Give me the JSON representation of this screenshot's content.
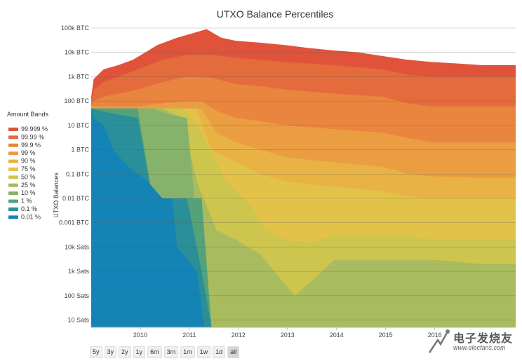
{
  "chart_data": {
    "type": "area",
    "title": "UTXO Balance Percentiles",
    "ylabel": "UTXO Balances",
    "y_scale": "log",
    "y_unit": "BTC",
    "ylim_btc": [
      5e-08,
      100000.0
    ],
    "y_ticks": [
      {
        "label": "100k BTC",
        "value": 100000
      },
      {
        "label": "10k BTC",
        "value": 10000
      },
      {
        "label": "1k BTC",
        "value": 1000
      },
      {
        "label": "100 BTC",
        "value": 100
      },
      {
        "label": "10 BTC",
        "value": 10
      },
      {
        "label": "1 BTC",
        "value": 1
      },
      {
        "label": "0.1 BTC",
        "value": 0.1
      },
      {
        "label": "0.01 BTC",
        "value": 0.01
      },
      {
        "label": "0.001 BTC",
        "value": 0.001
      },
      {
        "label": "10k Sats",
        "value": 0.0001
      },
      {
        "label": "1k Sats",
        "value": 1e-05
      },
      {
        "label": "100 Sats",
        "value": 1e-06
      },
      {
        "label": "10 Sats",
        "value": 1e-07
      }
    ],
    "xlim": [
      2009.05,
      2017.7
    ],
    "x_ticks": [
      "2010",
      "2011",
      "2012",
      "2013",
      "2014",
      "2015",
      "2016"
    ],
    "grid": true,
    "legend_title": "Amount Bands",
    "legend_position": "left",
    "series": [
      {
        "name": "99.999 %",
        "color": "#e0533a",
        "x": [
          2009.05,
          2009.1,
          2009.3,
          2009.6,
          2009.9,
          2010.4,
          2010.8,
          2011.1,
          2011.4,
          2011.7,
          2012.0,
          2012.5,
          2013.0,
          2013.5,
          2014.0,
          2014.5,
          2015.0,
          2015.5,
          2016.0,
          2016.5,
          2017.0,
          2017.7
        ],
        "y": [
          150,
          800,
          2000,
          3000,
          5000,
          20000,
          40000,
          60000,
          90000,
          40000,
          30000,
          25000,
          20000,
          15000,
          12000,
          10000,
          7000,
          5000,
          4000,
          3500,
          3000,
          3000
        ]
      },
      {
        "name": "99.99 %",
        "color": "#e46b3c",
        "x": [
          2009.05,
          2009.1,
          2009.3,
          2009.6,
          2010.0,
          2010.5,
          2011.0,
          2011.5,
          2012.0,
          2012.5,
          2013.0,
          2014.0,
          2015.0,
          2015.5,
          2016.0,
          2017.0,
          2017.7
        ],
        "y": [
          100,
          300,
          600,
          1000,
          2000,
          5000,
          8000,
          8000,
          6000,
          5000,
          4000,
          3000,
          2000,
          1200,
          1000,
          1000,
          1000
        ]
      },
      {
        "name": "99.9 %",
        "color": "#e9853f",
        "x": [
          2009.05,
          2009.1,
          2009.3,
          2009.6,
          2010.0,
          2010.5,
          2011.0,
          2011.5,
          2012.0,
          2012.5,
          2013.0,
          2014.0,
          2015.0,
          2015.5,
          2016.0,
          2017.0,
          2017.7
        ],
        "y": [
          70,
          100,
          150,
          200,
          300,
          600,
          1000,
          900,
          500,
          400,
          300,
          200,
          150,
          80,
          60,
          60,
          60
        ]
      },
      {
        "name": "99 %",
        "color": "#eb9d42",
        "x": [
          2009.05,
          2009.1,
          2009.5,
          2010.0,
          2010.5,
          2011.0,
          2011.3,
          2011.6,
          2012.0,
          2012.5,
          2013.0,
          2014.0,
          2015.0,
          2015.5,
          2016.0,
          2017.0,
          2017.7
        ],
        "y": [
          60,
          60,
          60,
          60,
          80,
          100,
          100,
          40,
          20,
          15,
          10,
          7,
          5,
          3,
          2,
          2,
          2
        ]
      },
      {
        "name": "90 %",
        "color": "#e8b245",
        "x": [
          2009.05,
          2010.0,
          2010.5,
          2011.0,
          2011.3,
          2011.6,
          2012.0,
          2012.5,
          2013.0,
          2014.0,
          2015.0,
          2015.5,
          2016.0,
          2017.0,
          2017.7
        ],
        "y": [
          50,
          50,
          50,
          50,
          50,
          5,
          2,
          1,
          0.5,
          0.3,
          0.2,
          0.1,
          0.08,
          0.07,
          0.07
        ]
      },
      {
        "name": "75 %",
        "color": "#e3c24a",
        "x": [
          2009.05,
          2010.0,
          2010.5,
          2011.0,
          2011.2,
          2011.5,
          2012.0,
          2012.5,
          2013.0,
          2014.0,
          2015.0,
          2015.5,
          2016.0,
          2017.0,
          2017.7
        ],
        "y": [
          50,
          50,
          50,
          50,
          50,
          1,
          0.3,
          0.1,
          0.05,
          0.03,
          0.02,
          0.012,
          0.01,
          0.01,
          0.01
        ]
      },
      {
        "name": "50 %",
        "color": "#cdc54d",
        "x": [
          2009.05,
          2010.0,
          2010.5,
          2010.9,
          2011.3,
          2011.8,
          2012.3,
          2012.6,
          2013.0,
          2013.5,
          2014.0,
          2015.0,
          2015.5,
          2016.0,
          2017.0,
          2017.7
        ],
        "y": [
          50,
          50,
          50,
          50,
          5,
          0.05,
          0.005,
          0.0005,
          0.0002,
          0.00015,
          0.0003,
          0.0003,
          0.0003,
          0.0002,
          0.0002,
          0.0002
        ]
      },
      {
        "name": "25 %",
        "color": "#a8bb5f",
        "x": [
          2009.05,
          2010.0,
          2010.5,
          2010.9,
          2011.2,
          2011.6,
          2012.0,
          2012.5,
          2012.9,
          2013.2,
          2013.6,
          2014.0,
          2015.0,
          2015.6,
          2016.0,
          2017.0,
          2017.7
        ],
        "y": [
          50,
          50,
          50,
          20,
          0.05,
          0.0005,
          0.0002,
          5e-05,
          5e-06,
          1e-06,
          5e-06,
          3e-05,
          3e-05,
          3e-05,
          3e-05,
          2e-05,
          2e-05
        ]
      },
      {
        "name": "10 %",
        "color": "#86b26b",
        "x": [
          2009.05,
          2010.0,
          2010.3,
          2010.6,
          2011.0,
          2011.4,
          2011.7,
          2012.0,
          2013.0,
          2014.0,
          2015.0,
          2016.0,
          2017.0,
          2017.7
        ],
        "y": [
          50,
          50,
          50,
          30,
          20,
          5e-08,
          5e-08,
          5e-08,
          5e-08,
          5e-08,
          5e-08,
          5e-08,
          5e-08,
          5e-08
        ]
      },
      {
        "name": "1 %",
        "color": "#54a27a",
        "x": [
          2009.05,
          2009.5,
          2010.0,
          2010.3,
          2010.7,
          2011.0,
          2011.3,
          2011.5,
          2011.7
        ],
        "y": [
          50,
          50,
          50,
          0.01,
          0.01,
          0.01,
          0.01,
          5e-08,
          5e-08
        ]
      },
      {
        "name": "0.1 %",
        "color": "#2a8f98",
        "x": [
          2009.05,
          2009.5,
          2010.0,
          2010.3,
          2010.7,
          2010.75,
          2011.0,
          2011.3,
          2011.5
        ],
        "y": [
          50,
          30,
          20,
          0.01,
          0.01,
          0.01,
          0.01,
          1e-05,
          5e-08
        ]
      },
      {
        "name": "0.01 %",
        "color": "#1483b6",
        "x": [
          2009.05,
          2009.1,
          2009.3,
          2009.5,
          2009.8,
          2010.0,
          2010.2,
          2010.5,
          2010.7,
          2010.8,
          2011.2,
          2011.35
        ],
        "y": [
          50,
          20,
          10,
          1,
          0.2,
          0.1,
          0.05,
          0.01,
          0.01,
          0.0001,
          1e-05,
          5e-08
        ]
      }
    ]
  },
  "range_selector": {
    "buttons": [
      "5y",
      "3y",
      "2y",
      "1y",
      "6m",
      "3m",
      "1m",
      "1w",
      "1d",
      "all"
    ],
    "active": "all"
  },
  "watermark": {
    "title": "电子发烧友",
    "url": "www.elecfans.com"
  }
}
